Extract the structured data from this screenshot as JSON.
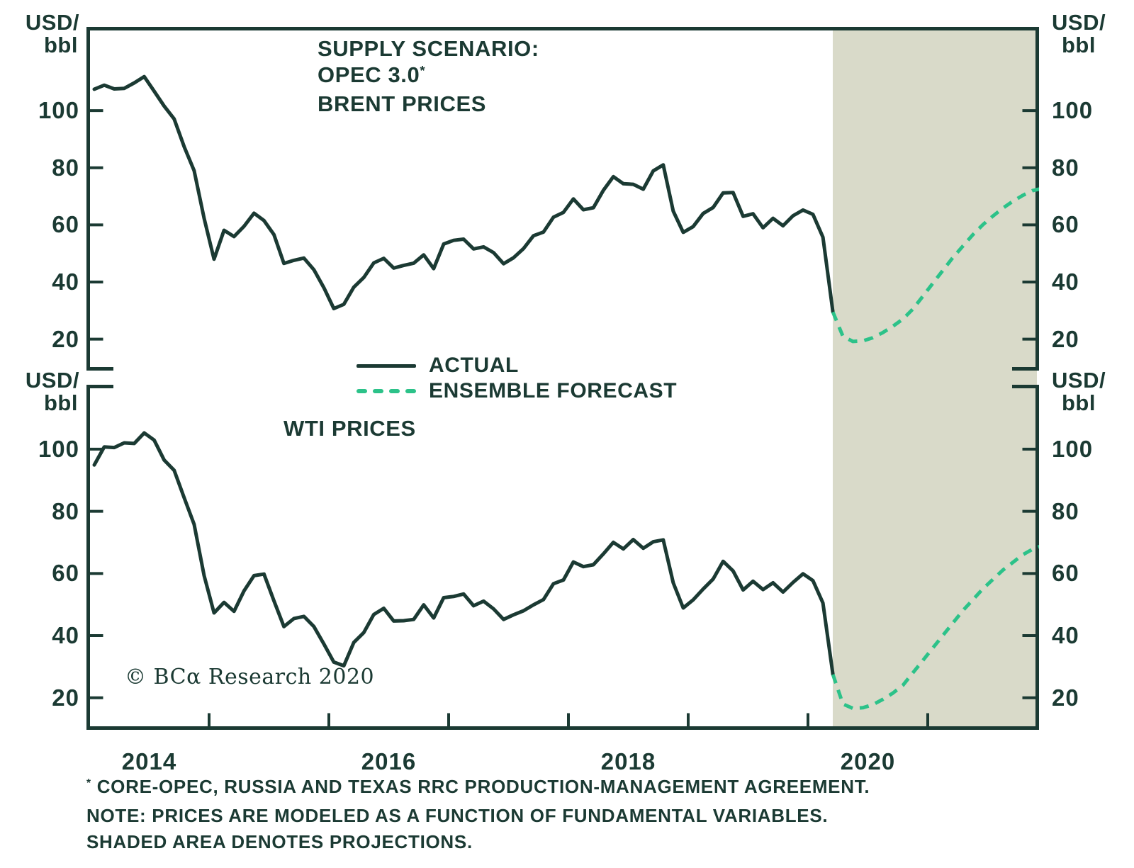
{
  "branding": {
    "copyright": "© BCα Research 2020"
  },
  "axis_unit": {
    "line1": "USD/",
    "line2": "bbl"
  },
  "titles": {
    "top_line1": "SUPPLY SCENARIO:",
    "top_line2": "OPEC 3.0",
    "top_line2_sup": "*",
    "top_line3": "BRENT PRICES",
    "bottom": "WTI PRICES"
  },
  "legend": {
    "actual": "ACTUAL",
    "forecast": "ENSEMBLE FORECAST"
  },
  "footnotes": {
    "marker": "*",
    "line1": " CORE-OPEC, RUSSIA AND TEXAS RRC PRODUCTION-MANAGEMENT AGREEMENT.",
    "line2": "NOTE: PRICES ARE MODELED AS A FUNCTION OF FUNDAMENTAL VARIABLES.",
    "line3": "SHADED AREA DENOTES PROJECTIONS."
  },
  "colors": {
    "dark": "#1b3a33",
    "green": "#2cc289",
    "shade": "#d9dac9"
  },
  "x_axis": {
    "labels": [
      "2014",
      "2016",
      "2018",
      "2020"
    ]
  },
  "chart_data": [
    {
      "type": "line",
      "title": "SUPPLY SCENARIO: OPEC 3.0* BRENT PRICES",
      "xlabel": "",
      "ylabel": "USD/bbl",
      "ylim": [
        9,
        129
      ],
      "x_range_years": [
        2014,
        2022
      ],
      "grid": false,
      "legend_position": "center-between-panels",
      "projection_start": 2020.21,
      "y_ticks": [
        20,
        40,
        60,
        80,
        100
      ],
      "x_ticks_years": [
        2015,
        2016,
        2017,
        2018,
        2019,
        2020,
        2021
      ],
      "series": [
        {
          "name": "ACTUAL",
          "style": "solid",
          "color": "#1b3a33",
          "t0": 2014.0417,
          "per_year": 12,
          "values": [
            107.5,
            108.9,
            107.6,
            107.8,
            109.7,
            111.9,
            106.8,
            101.6,
            97.1,
            87.4,
            79.0,
            62.3,
            48.0,
            58.1,
            55.9,
            59.5,
            64.1,
            61.5,
            56.6,
            46.5,
            47.6,
            48.4,
            44.3,
            38.0,
            30.7,
            32.2,
            38.2,
            41.6,
            46.7,
            48.3,
            44.9,
            45.8,
            46.6,
            49.5,
            44.7,
            53.3,
            54.6,
            55.0,
            51.6,
            52.3,
            50.3,
            46.4,
            48.5,
            51.7,
            56.2,
            57.5,
            62.7,
            64.4,
            69.1,
            65.3,
            66.0,
            72.1,
            76.9,
            74.4,
            74.2,
            72.5,
            78.9,
            81.0,
            64.8,
            57.4,
            59.4,
            64.0,
            66.1,
            71.2,
            71.3,
            63.0,
            63.9,
            59.0,
            62.3,
            59.7,
            63.2,
            65.2,
            63.7,
            55.7,
            29.5
          ]
        },
        {
          "name": "ENSEMBLE FORECAST",
          "style": "dashed",
          "color": "#2cc289",
          "t0": 2020.2083,
          "per_year": 12,
          "values": [
            29.5,
            21.0,
            19.2,
            19.4,
            20.5,
            22.3,
            24.5,
            27.0,
            30.5,
            35.0,
            39.5,
            44.0,
            48.5,
            52.5,
            56.5,
            60.0,
            63.0,
            65.8,
            68.2,
            70.3,
            72.0,
            72.8,
            72.6
          ]
        }
      ]
    },
    {
      "type": "line",
      "title": "WTI PRICES",
      "xlabel": "",
      "ylabel": "USD/bbl",
      "ylim": [
        9,
        121
      ],
      "x_range_years": [
        2014,
        2022
      ],
      "grid": false,
      "projection_start": 2020.21,
      "y_ticks": [
        20,
        40,
        60,
        80,
        100
      ],
      "x_ticks_years": [
        2015,
        2016,
        2017,
        2018,
        2019,
        2020,
        2021
      ],
      "series": [
        {
          "name": "ACTUAL",
          "style": "solid",
          "color": "#1b3a33",
          "t0": 2014.0417,
          "per_year": 12,
          "values": [
            94.9,
            100.7,
            100.5,
            102.0,
            101.8,
            105.2,
            102.9,
            96.5,
            93.2,
            84.4,
            75.8,
            59.3,
            47.3,
            50.7,
            47.8,
            54.4,
            59.3,
            59.8,
            51.2,
            42.9,
            45.5,
            46.2,
            42.9,
            37.3,
            31.5,
            30.3,
            37.8,
            41.0,
            46.8,
            48.8,
            44.7,
            44.8,
            45.2,
            49.9,
            45.7,
            52.2,
            52.6,
            53.4,
            49.6,
            51.1,
            48.6,
            45.2,
            46.7,
            48.0,
            49.9,
            51.6,
            56.7,
            57.9,
            63.7,
            62.2,
            62.8,
            66.3,
            70.0,
            67.9,
            70.9,
            68.1,
            70.2,
            70.8,
            57.0,
            48.9,
            51.5,
            55.0,
            58.2,
            63.9,
            60.8,
            54.7,
            57.5,
            54.8,
            57.0,
            54.0,
            57.1,
            59.9,
            57.7,
            50.5,
            27.5
          ]
        },
        {
          "name": "ENSEMBLE FORECAST",
          "style": "dashed",
          "color": "#2cc289",
          "t0": 2020.2083,
          "per_year": 12,
          "values": [
            27.5,
            18.0,
            16.6,
            16.8,
            17.8,
            19.5,
            21.5,
            24.0,
            28.0,
            32.0,
            36.0,
            40.0,
            44.0,
            48.0,
            51.5,
            55.0,
            58.0,
            61.0,
            63.5,
            66.0,
            67.8,
            69.0,
            68.6
          ]
        }
      ]
    }
  ]
}
